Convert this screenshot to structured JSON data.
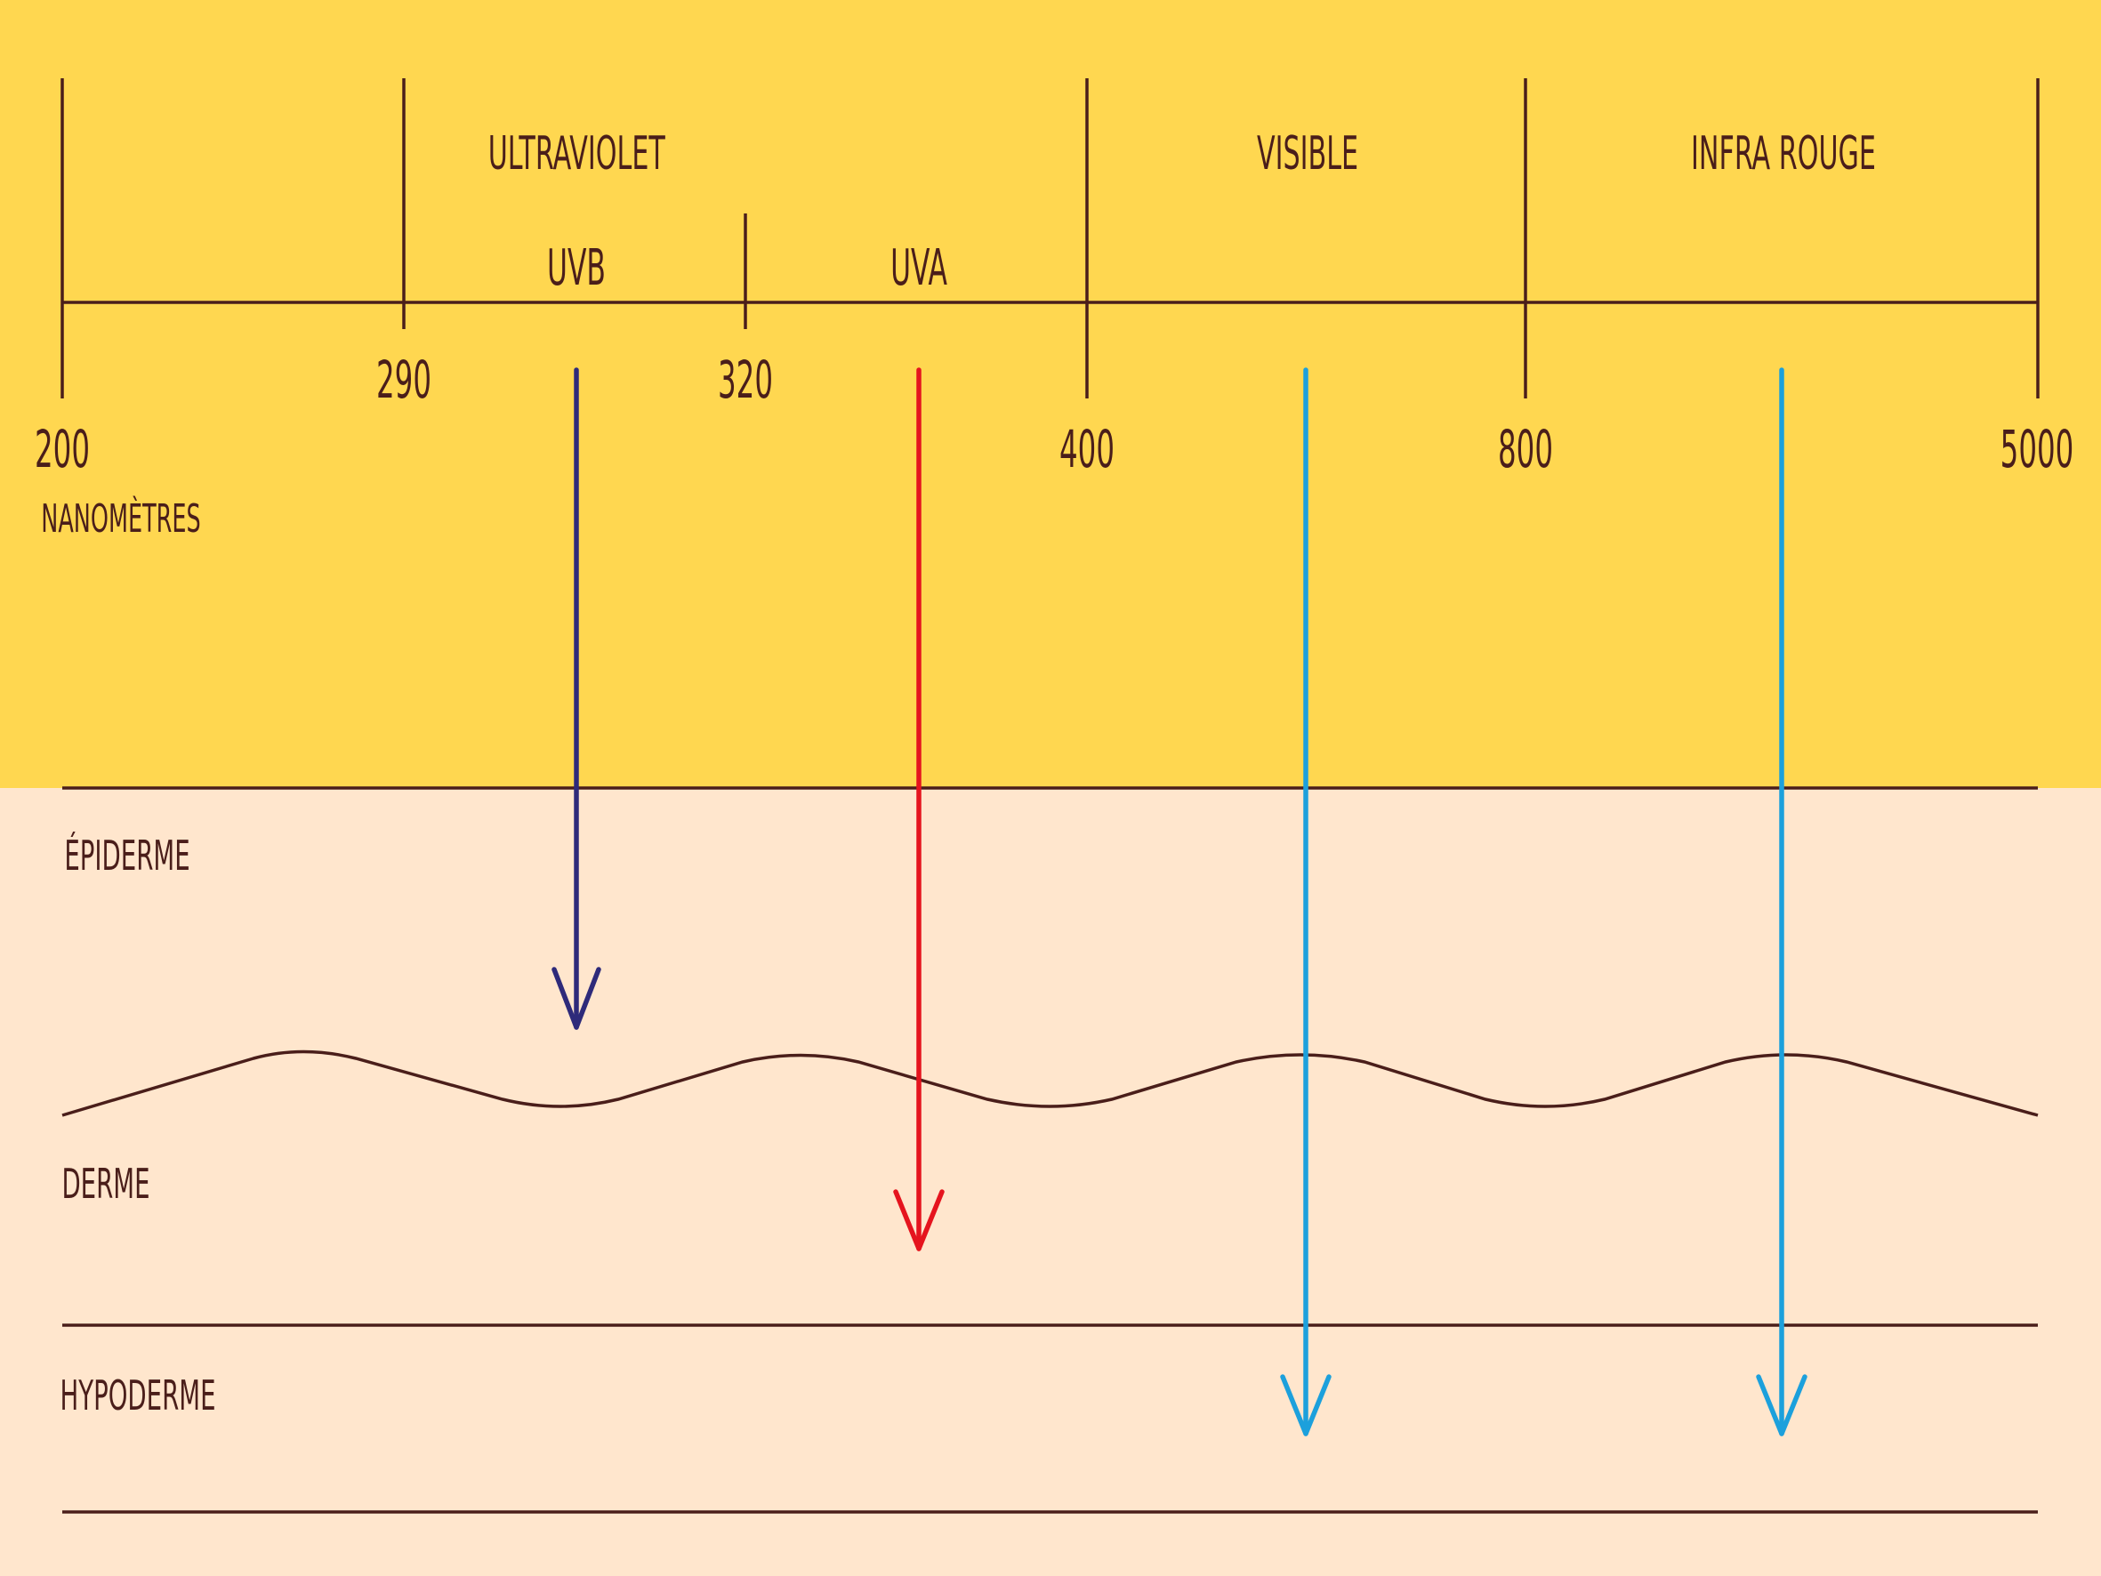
{
  "colors": {
    "sky": "#FFD750",
    "skin": "#FFE6CD",
    "ink": "#4A1E1A",
    "uvb": "#2E2A7A",
    "uva": "#E5141E",
    "visible": "#1CA0DC",
    "infrared": "#1CA0DC"
  },
  "spectrum": {
    "bands": [
      {
        "key": "ultraviolet",
        "label": "ULTRAVIOLET"
      },
      {
        "key": "visible",
        "label": "VISIBLE"
      },
      {
        "key": "infrared",
        "label": "INFRA ROUGE"
      }
    ],
    "sub_bands": [
      {
        "key": "uvb",
        "label": "UVB"
      },
      {
        "key": "uva",
        "label": "UVA"
      }
    ],
    "ticks": [
      "200",
      "290",
      "320",
      "400",
      "800",
      "5000"
    ],
    "unit": "NANOMÈTRES"
  },
  "skin": {
    "layers": [
      {
        "key": "epidermis",
        "label": "ÉPIDERME"
      },
      {
        "key": "dermis",
        "label": "DERME"
      },
      {
        "key": "hypodermis",
        "label": "HYPODERME"
      }
    ]
  },
  "penetration": [
    {
      "radiation": "UVB",
      "reaches": "ÉPIDERME",
      "color_key": "uvb"
    },
    {
      "radiation": "UVA",
      "reaches": "DERME",
      "color_key": "uva"
    },
    {
      "radiation": "VISIBLE",
      "reaches": "HYPODERME",
      "color_key": "visible"
    },
    {
      "radiation": "INFRA ROUGE",
      "reaches": "HYPODERME",
      "color_key": "infrared"
    }
  ]
}
